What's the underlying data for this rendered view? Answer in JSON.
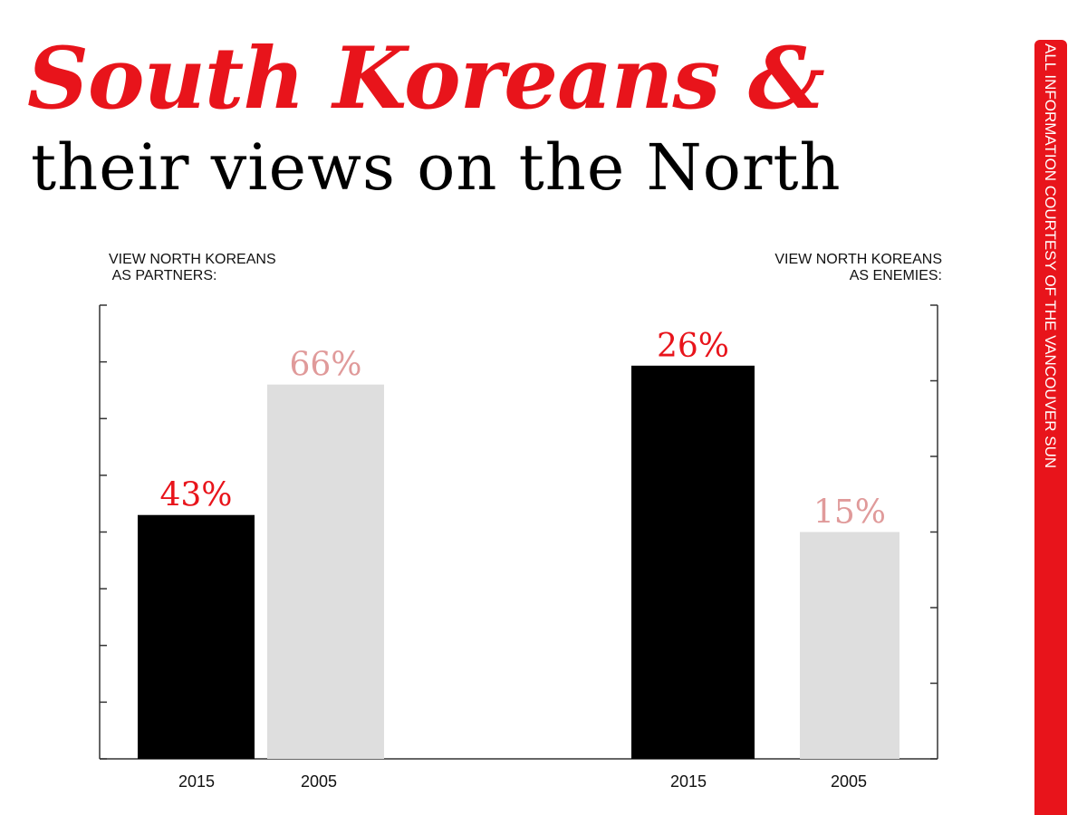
{
  "title": {
    "line1": "South Koreans &",
    "line2": "their views on the North"
  },
  "source": "ALL INFORMATION COURTESY OF THE VANCOUVER SUN",
  "colors": {
    "accent": "#e8141b",
    "bar_2015": "#000000",
    "bar_2005": "#dedede",
    "value_2015": "#e8141b",
    "value_2005": "#e09a9a",
    "axis": "#333333"
  },
  "chart_data": [
    {
      "type": "bar",
      "title": "VIEW NORTH KOREANS\n AS PARTNERS:",
      "categories": [
        "2015",
        "2005"
      ],
      "values": [
        43,
        66
      ],
      "value_labels": [
        "43%",
        "66%"
      ],
      "ylim": [
        0,
        80
      ],
      "grid": false
    },
    {
      "type": "bar",
      "title": "VIEW NORTH KOREANS\nAS ENEMIES:",
      "categories": [
        "2015",
        "2005"
      ],
      "values": [
        26,
        15
      ],
      "value_labels": [
        "26%",
        "15%"
      ],
      "ylim": [
        0,
        30
      ],
      "grid": false
    }
  ]
}
